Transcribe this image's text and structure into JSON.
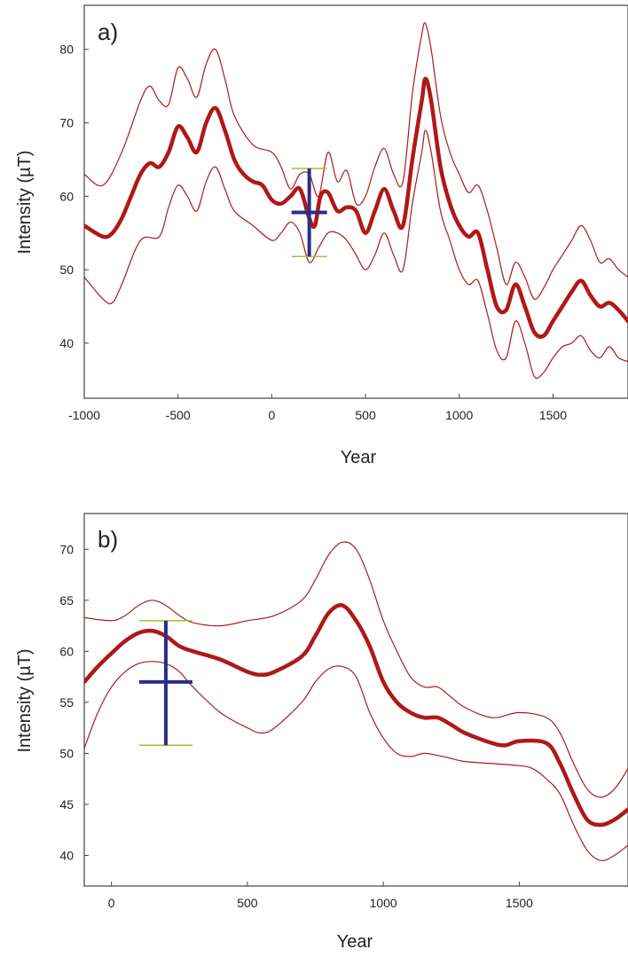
{
  "colors": {
    "curve": "#b01818",
    "bounds": "#b01818",
    "cross": "#2a2e8a",
    "bound_ticks": "#9ac43c",
    "axis": "#444444"
  },
  "chart_data": [
    {
      "type": "line",
      "panel_label": "a)",
      "xlabel": "Year",
      "ylabel": "Intensity (µT)",
      "xlim": [
        -1000,
        1900
      ],
      "ylim": [
        32.5,
        86
      ],
      "xticks": [
        -1000,
        -500,
        0,
        500,
        1000,
        1500
      ],
      "yticks": [
        40,
        50,
        60,
        70,
        80
      ],
      "series": [
        {
          "role": "upper",
          "points": [
            [
              -1000,
              63
            ],
            [
              -900,
              61.5
            ],
            [
              -800,
              66
            ],
            [
              -700,
              73
            ],
            [
              -650,
              75
            ],
            [
              -600,
              73
            ],
            [
              -550,
              72.5
            ],
            [
              -500,
              77.5
            ],
            [
              -450,
              76
            ],
            [
              -400,
              73.5
            ],
            [
              -350,
              78
            ],
            [
              -300,
              80
            ],
            [
              -250,
              76
            ],
            [
              -200,
              71
            ],
            [
              -100,
              67
            ],
            [
              0,
              66
            ],
            [
              50,
              64
            ],
            [
              100,
              61
            ],
            [
              150,
              63
            ],
            [
              200,
              63
            ],
            [
              250,
              60
            ],
            [
              300,
              66
            ],
            [
              350,
              62
            ],
            [
              400,
              63.5
            ],
            [
              450,
              59
            ],
            [
              500,
              60
            ],
            [
              550,
              64
            ],
            [
              600,
              66.5
            ],
            [
              650,
              63
            ],
            [
              700,
              62
            ],
            [
              750,
              74
            ],
            [
              800,
              82
            ],
            [
              820,
              83.5
            ],
            [
              850,
              80
            ],
            [
              900,
              71
            ],
            [
              950,
              66
            ],
            [
              1000,
              63
            ],
            [
              1050,
              60.5
            ],
            [
              1100,
              61.5
            ],
            [
              1150,
              58
            ],
            [
              1200,
              53
            ],
            [
              1250,
              48
            ],
            [
              1300,
              51
            ],
            [
              1350,
              49
            ],
            [
              1400,
              46
            ],
            [
              1450,
              47.5
            ],
            [
              1500,
              50
            ],
            [
              1550,
              52
            ],
            [
              1600,
              54
            ],
            [
              1650,
              56
            ],
            [
              1700,
              54
            ],
            [
              1750,
              51
            ],
            [
              1800,
              51.5
            ],
            [
              1850,
              50
            ],
            [
              1900,
              49
            ]
          ]
        },
        {
          "role": "mean",
          "points": [
            [
              -1000,
              56
            ],
            [
              -900,
              54.5
            ],
            [
              -850,
              55
            ],
            [
              -800,
              57
            ],
            [
              -750,
              60
            ],
            [
              -700,
              63
            ],
            [
              -650,
              64.5
            ],
            [
              -600,
              64
            ],
            [
              -550,
              66
            ],
            [
              -500,
              69.5
            ],
            [
              -450,
              68
            ],
            [
              -400,
              66
            ],
            [
              -350,
              70
            ],
            [
              -300,
              72
            ],
            [
              -250,
              69
            ],
            [
              -200,
              65
            ],
            [
              -150,
              63
            ],
            [
              -100,
              62
            ],
            [
              -50,
              61.5
            ],
            [
              0,
              59.5
            ],
            [
              50,
              59
            ],
            [
              100,
              60
            ],
            [
              150,
              61
            ],
            [
              200,
              57
            ],
            [
              230,
              56
            ],
            [
              260,
              60
            ],
            [
              300,
              60.5
            ],
            [
              350,
              58
            ],
            [
              400,
              58.5
            ],
            [
              450,
              58
            ],
            [
              500,
              55
            ],
            [
              550,
              58
            ],
            [
              600,
              61
            ],
            [
              650,
              58
            ],
            [
              700,
              56
            ],
            [
              750,
              65
            ],
            [
              800,
              73
            ],
            [
              820,
              76
            ],
            [
              850,
              73
            ],
            [
              900,
              64
            ],
            [
              950,
              59
            ],
            [
              1000,
              56
            ],
            [
              1050,
              54.5
            ],
            [
              1100,
              55
            ],
            [
              1150,
              50
            ],
            [
              1200,
              45
            ],
            [
              1250,
              44.5
            ],
            [
              1300,
              48
            ],
            [
              1350,
              45
            ],
            [
              1400,
              41.5
            ],
            [
              1450,
              41
            ],
            [
              1500,
              43
            ],
            [
              1550,
              45
            ],
            [
              1600,
              47
            ],
            [
              1650,
              48.5
            ],
            [
              1700,
              46.5
            ],
            [
              1750,
              45
            ],
            [
              1800,
              45.5
            ],
            [
              1850,
              44.5
            ],
            [
              1900,
              43
            ]
          ]
        },
        {
          "role": "lower",
          "points": [
            [
              -1000,
              49
            ],
            [
              -900,
              46
            ],
            [
              -850,
              45.5
            ],
            [
              -800,
              48
            ],
            [
              -700,
              54
            ],
            [
              -600,
              54.5
            ],
            [
              -550,
              58.5
            ],
            [
              -500,
              61.5
            ],
            [
              -450,
              60
            ],
            [
              -400,
              58
            ],
            [
              -350,
              62
            ],
            [
              -300,
              64
            ],
            [
              -250,
              61
            ],
            [
              -200,
              58
            ],
            [
              -100,
              56
            ],
            [
              0,
              54
            ],
            [
              50,
              55
            ],
            [
              100,
              56.5
            ],
            [
              150,
              55
            ],
            [
              200,
              51
            ],
            [
              250,
              53
            ],
            [
              300,
              55
            ],
            [
              350,
              55
            ],
            [
              400,
              54
            ],
            [
              450,
              52
            ],
            [
              500,
              50
            ],
            [
              550,
              52
            ],
            [
              600,
              55
            ],
            [
              650,
              52
            ],
            [
              700,
              50
            ],
            [
              750,
              59
            ],
            [
              800,
              66
            ],
            [
              820,
              69
            ],
            [
              850,
              66
            ],
            [
              900,
              58
            ],
            [
              950,
              54
            ],
            [
              1000,
              50
            ],
            [
              1050,
              48
            ],
            [
              1100,
              48.5
            ],
            [
              1150,
              44
            ],
            [
              1200,
              39
            ],
            [
              1250,
              38
            ],
            [
              1300,
              43
            ],
            [
              1350,
              40
            ],
            [
              1400,
              35.5
            ],
            [
              1450,
              36
            ],
            [
              1500,
              38
            ],
            [
              1550,
              39.5
            ],
            [
              1600,
              40
            ],
            [
              1650,
              41
            ],
            [
              1700,
              39
            ],
            [
              1750,
              38
            ],
            [
              1800,
              39.5
            ],
            [
              1850,
              38
            ],
            [
              1900,
              37.5
            ]
          ]
        }
      ],
      "crosshair": {
        "x": 200,
        "y": 57.8,
        "ylow": 51.8,
        "yhigh": 63.8
      }
    },
    {
      "type": "line",
      "panel_label": "b)",
      "xlabel": "Year",
      "ylabel": "Intensity (µT)",
      "xlim": [
        -100,
        1900
      ],
      "ylim": [
        37,
        73.5
      ],
      "xticks": [
        0,
        500,
        1000,
        1500
      ],
      "yticks": [
        40,
        45,
        50,
        55,
        60,
        65,
        70
      ],
      "series": [
        {
          "role": "upper",
          "points": [
            [
              -100,
              63.3
            ],
            [
              0,
              63
            ],
            [
              50,
              63.5
            ],
            [
              100,
              64.5
            ],
            [
              150,
              65
            ],
            [
              200,
              64.5
            ],
            [
              250,
              63.5
            ],
            [
              300,
              62.8
            ],
            [
              400,
              62.5
            ],
            [
              500,
              63
            ],
            [
              600,
              63.5
            ],
            [
              700,
              65
            ],
            [
              750,
              67
            ],
            [
              800,
              69.5
            ],
            [
              850,
              70.7
            ],
            [
              900,
              70
            ],
            [
              950,
              67
            ],
            [
              1000,
              63
            ],
            [
              1050,
              60
            ],
            [
              1100,
              57.5
            ],
            [
              1150,
              56.5
            ],
            [
              1200,
              56.5
            ],
            [
              1250,
              55.5
            ],
            [
              1300,
              54.5
            ],
            [
              1400,
              53.5
            ],
            [
              1500,
              54
            ],
            [
              1600,
              53.5
            ],
            [
              1650,
              52
            ],
            [
              1700,
              49
            ],
            [
              1750,
              46.5
            ],
            [
              1800,
              45.7
            ],
            [
              1850,
              46.5
            ],
            [
              1900,
              48.5
            ]
          ]
        },
        {
          "role": "mean",
          "points": [
            [
              -100,
              57
            ],
            [
              -50,
              58.5
            ],
            [
              0,
              59.8
            ],
            [
              50,
              61
            ],
            [
              100,
              61.8
            ],
            [
              150,
              62
            ],
            [
              200,
              61.5
            ],
            [
              250,
              60.5
            ],
            [
              300,
              60
            ],
            [
              400,
              59.2
            ],
            [
              500,
              58
            ],
            [
              550,
              57.7
            ],
            [
              600,
              58
            ],
            [
              700,
              59.5
            ],
            [
              750,
              61.5
            ],
            [
              800,
              63.8
            ],
            [
              850,
              64.5
            ],
            [
              900,
              63
            ],
            [
              950,
              60.5
            ],
            [
              1000,
              57
            ],
            [
              1050,
              55
            ],
            [
              1100,
              54
            ],
            [
              1150,
              53.5
            ],
            [
              1200,
              53.5
            ],
            [
              1250,
              52.8
            ],
            [
              1300,
              52
            ],
            [
              1400,
              51
            ],
            [
              1450,
              50.8
            ],
            [
              1500,
              51.2
            ],
            [
              1600,
              51
            ],
            [
              1650,
              49
            ],
            [
              1700,
              46
            ],
            [
              1750,
              43.5
            ],
            [
              1800,
              43
            ],
            [
              1850,
              43.5
            ],
            [
              1900,
              44.5
            ]
          ]
        },
        {
          "role": "lower",
          "points": [
            [
              -100,
              50.5
            ],
            [
              -50,
              54
            ],
            [
              0,
              56.5
            ],
            [
              50,
              58
            ],
            [
              100,
              58.8
            ],
            [
              150,
              59
            ],
            [
              200,
              58.8
            ],
            [
              250,
              58
            ],
            [
              300,
              56.5
            ],
            [
              400,
              54
            ],
            [
              500,
              52.5
            ],
            [
              550,
              52
            ],
            [
              600,
              52.5
            ],
            [
              700,
              55
            ],
            [
              750,
              57
            ],
            [
              800,
              58.3
            ],
            [
              850,
              58.5
            ],
            [
              900,
              57.5
            ],
            [
              950,
              54
            ],
            [
              1000,
              51.5
            ],
            [
              1050,
              50
            ],
            [
              1100,
              49.7
            ],
            [
              1150,
              50
            ],
            [
              1200,
              49.8
            ],
            [
              1250,
              49.5
            ],
            [
              1300,
              49.2
            ],
            [
              1400,
              49
            ],
            [
              1500,
              48.8
            ],
            [
              1550,
              48.5
            ],
            [
              1600,
              47.5
            ],
            [
              1650,
              46
            ],
            [
              1700,
              43
            ],
            [
              1750,
              40.5
            ],
            [
              1800,
              39.5
            ],
            [
              1850,
              40
            ],
            [
              1900,
              41
            ]
          ]
        }
      ],
      "crosshair": {
        "x": 200,
        "y": 57,
        "ylow": 50.8,
        "yhigh": 63
      }
    }
  ]
}
